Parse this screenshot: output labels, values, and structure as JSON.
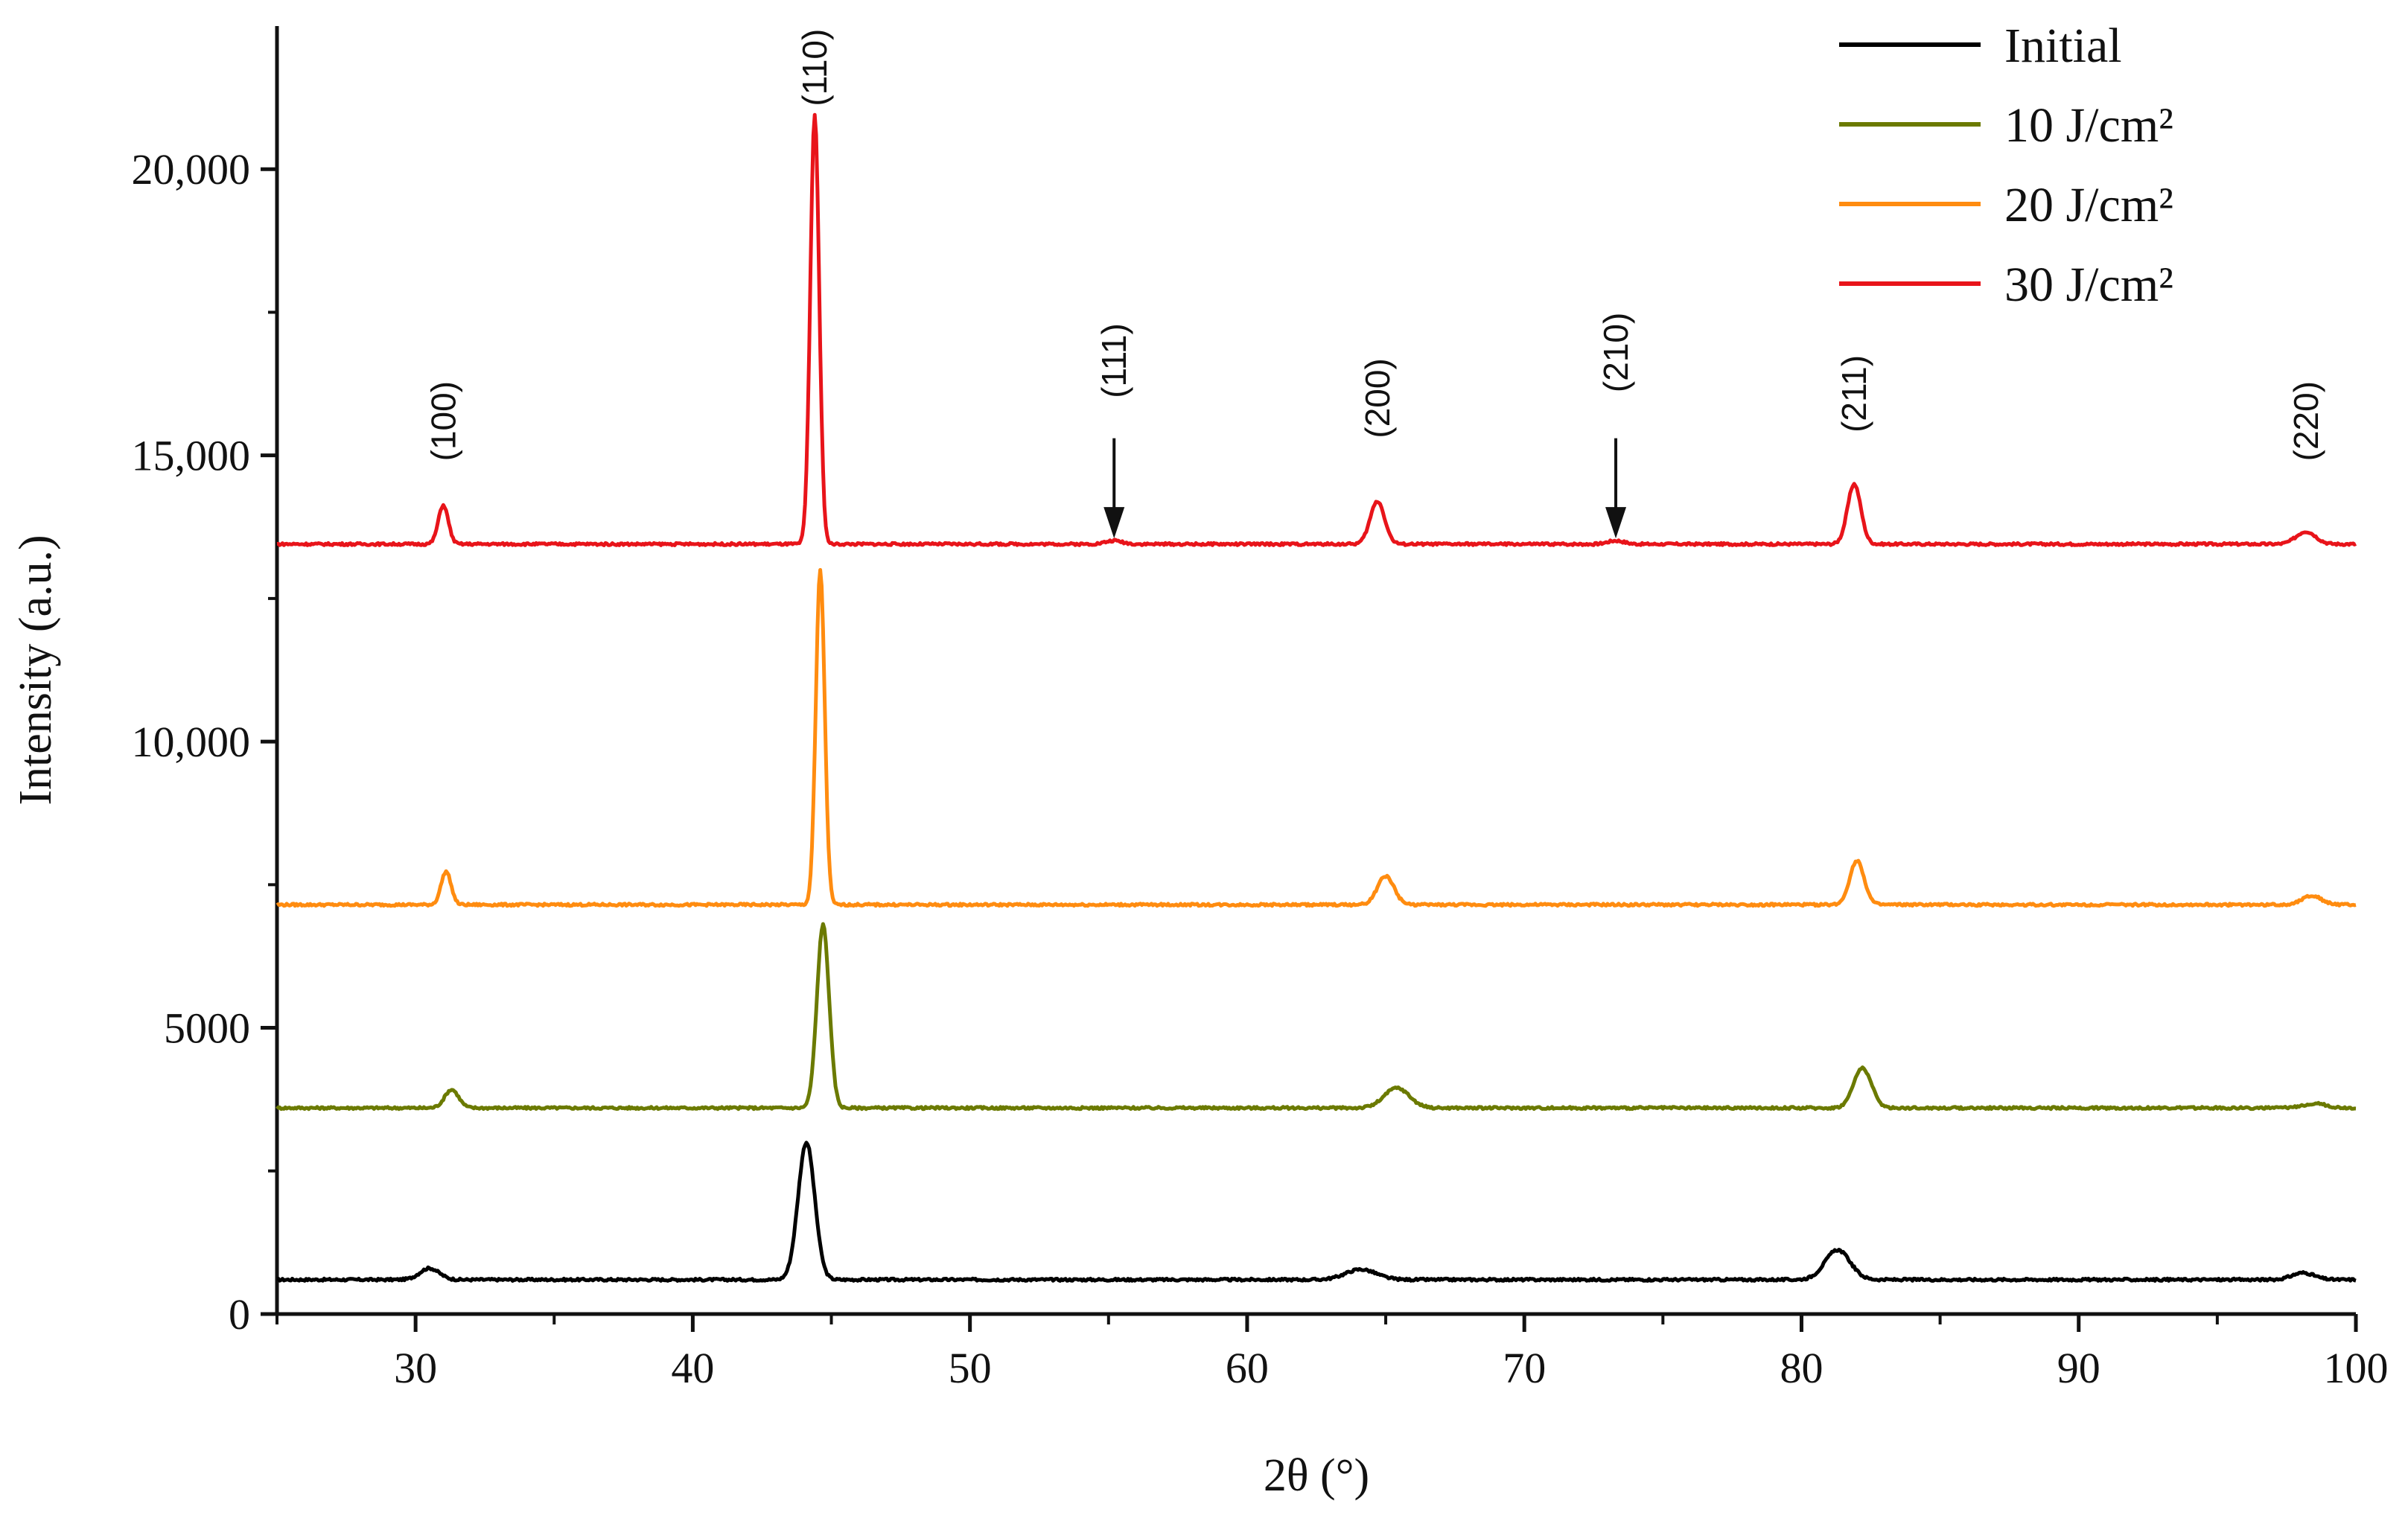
{
  "chart_data": {
    "type": "line",
    "title": "",
    "xlabel": "2θ (°)",
    "ylabel": "Intensity (a.u.)",
    "xlim": [
      25,
      100
    ],
    "ylim": [
      0,
      22500
    ],
    "x_ticks": [
      30,
      40,
      50,
      60,
      70,
      80,
      90,
      100
    ],
    "y_ticks": [
      {
        "value": 0,
        "label": "0"
      },
      {
        "value": 5000,
        "label": "5000"
      },
      {
        "value": 10000,
        "label": "10,000"
      },
      {
        "value": 15000,
        "label": "15,000"
      },
      {
        "value": 20000,
        "label": "20,000"
      }
    ],
    "legend_position": "top-right",
    "series": [
      {
        "name": "Initial",
        "color": "#000000",
        "baseline": 600,
        "peaks": [
          [
            30.5,
            200,
            0.35
          ],
          [
            44.1,
            2400,
            0.3
          ],
          [
            64.1,
            180,
            0.55
          ],
          [
            81.3,
            520,
            0.45
          ],
          [
            98.1,
            120,
            0.4
          ]
        ]
      },
      {
        "name": "10 J/cm²",
        "color": "#6b7a00",
        "baseline": 3600,
        "peaks": [
          [
            31.3,
            320,
            0.25
          ],
          [
            44.7,
            3200,
            0.22
          ],
          [
            65.4,
            350,
            0.45
          ],
          [
            82.2,
            700,
            0.32
          ],
          [
            98.5,
            80,
            0.4
          ]
        ]
      },
      {
        "name": "20 J/cm²",
        "color": "#ff8c10",
        "baseline": 7150,
        "peaks": [
          [
            31.1,
            580,
            0.18
          ],
          [
            44.6,
            5850,
            0.16
          ],
          [
            65.0,
            500,
            0.3
          ],
          [
            82.0,
            770,
            0.26
          ],
          [
            98.4,
            160,
            0.35
          ]
        ]
      },
      {
        "name": "30 J/cm²",
        "color": "#e8141a",
        "baseline": 13450,
        "peaks": [
          [
            31.0,
            680,
            0.18
          ],
          [
            44.4,
            7500,
            0.16
          ],
          [
            55.2,
            60,
            0.3
          ],
          [
            64.7,
            750,
            0.26
          ],
          [
            73.3,
            60,
            0.3
          ],
          [
            81.9,
            1050,
            0.24
          ],
          [
            98.2,
            220,
            0.35
          ]
        ]
      }
    ],
    "annotations": [
      {
        "label": "(100)",
        "x": 31.0,
        "y": 14900
      },
      {
        "label": "(110)",
        "x": 44.4,
        "y": 21100
      },
      {
        "label": "(111)",
        "x": 55.2,
        "y": 16000,
        "arrow": true,
        "arrow_top": 15300,
        "arrow_tip": 13550
      },
      {
        "label": "(200)",
        "x": 64.7,
        "y": 15300
      },
      {
        "label": "(210)",
        "x": 73.3,
        "y": 16100,
        "arrow": true,
        "arrow_top": 15300,
        "arrow_tip": 13550
      },
      {
        "label": "(211)",
        "x": 81.9,
        "y": 15400
      },
      {
        "label": "(220)",
        "x": 98.2,
        "y": 14900
      }
    ]
  }
}
